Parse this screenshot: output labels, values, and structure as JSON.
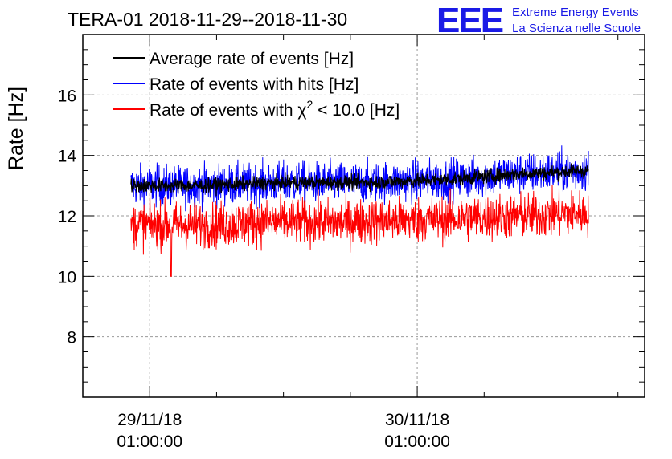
{
  "logo": {
    "mark": "EEE",
    "line1": "Extreme Energy Events",
    "line2": "La Scienza nelle Scuole",
    "color": "#1a1ae6"
  },
  "chart_data": {
    "type": "line",
    "title": "TERA-01 2018-11-29--2018-11-30",
    "ylabel": "Rate [Hz]",
    "xlabel": "",
    "xlim": [
      -0.25,
      1.85
    ],
    "ylim": [
      6.0,
      18.0
    ],
    "grid": true,
    "yticks": [
      8,
      10,
      12,
      14,
      16
    ],
    "xticks": [
      {
        "value": 0,
        "date": "29/11/18",
        "time": "01:00:00"
      },
      {
        "value": 1,
        "date": "30/11/18",
        "time": "01:00:00"
      }
    ],
    "x_unit": "days since 29/11/18 01:00:00",
    "data_x_range": [
      -0.07,
      1.64
    ],
    "legend_position": "top-left",
    "series": [
      {
        "name": "Average rate of events [Hz]",
        "color": "#000000",
        "x": [
          -0.07,
          0.2,
          0.5,
          0.8,
          1.1,
          1.4,
          1.64
        ],
        "values": [
          13.0,
          13.0,
          13.1,
          13.1,
          13.2,
          13.4,
          13.5
        ]
      },
      {
        "name": "Rate of events with hits [Hz]",
        "color": "#0000ff",
        "x": [
          -0.07,
          0.2,
          0.5,
          0.8,
          1.1,
          1.4,
          1.64
        ],
        "values": [
          13.0,
          13.0,
          13.1,
          13.1,
          13.2,
          13.4,
          13.5
        ]
      },
      {
        "name": "Rate of events with χ² < 10.0 [Hz]",
        "color": "#ff0000",
        "x": [
          -0.07,
          0.2,
          0.5,
          0.8,
          1.1,
          1.4,
          1.64
        ],
        "values": [
          11.7,
          11.7,
          11.8,
          11.8,
          11.9,
          12.0,
          12.1
        ]
      }
    ]
  },
  "legend_parts": {
    "chi_prefix": "Rate of events with χ",
    "chi_sup": "2",
    "chi_suffix": " < 10.0 [Hz]"
  }
}
